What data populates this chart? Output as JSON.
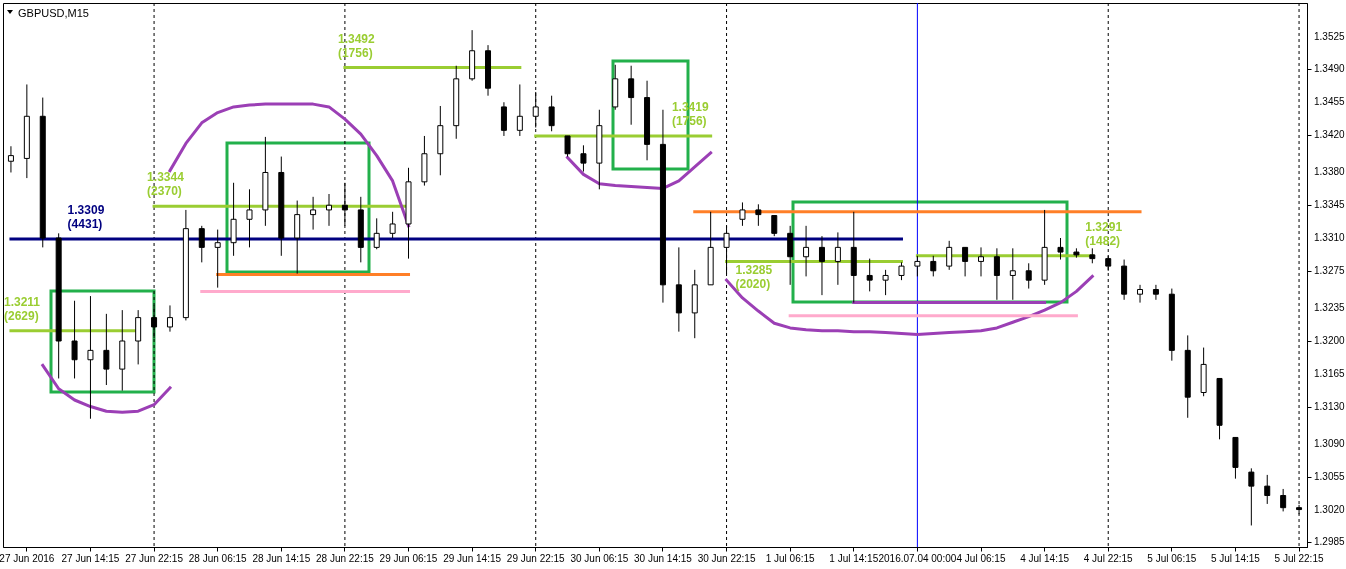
{
  "chart_data": {
    "type": "candlestick",
    "title": "GBPUSD,M15",
    "color": "#000000",
    "categories": [
      null,
      "27 Jun 2016",
      null,
      null,
      null,
      "27 Jun 14:15",
      null,
      null,
      null,
      "27 Jun 22:15",
      null,
      null,
      null,
      "28 Jun 06:15",
      null,
      null,
      null,
      "28 Jun 14:15",
      null,
      null,
      null,
      "28 Jun 22:15",
      null,
      null,
      null,
      "29 Jun 06:15",
      null,
      null,
      null,
      "29 Jun 14:15",
      null,
      null,
      null,
      "29 Jun 22:15",
      null,
      null,
      null,
      "30 Jun 06:15",
      null,
      null,
      null,
      "30 Jun 14:15",
      null,
      null,
      null,
      "30 Jun 22:15",
      null,
      null,
      null,
      "1 Jul 06:15",
      null,
      null,
      null,
      "1 Jul 14:15",
      null,
      null,
      null,
      "2016.07.04 00:00",
      null,
      null,
      null,
      "4 Jul 06:15",
      null,
      null,
      null,
      "4 Jul 14:15",
      null,
      null,
      null,
      "4 Jul 22:15",
      null,
      null,
      null,
      "5 Jul 06:15",
      null,
      null,
      null,
      "5 Jul 14:15",
      null,
      null,
      null,
      "5 Jul 22:15"
    ],
    "ohlc": [
      [
        1.3392,
        1.3408,
        1.338,
        1.3398
      ],
      [
        1.3395,
        1.3474,
        1.3374,
        1.344
      ],
      [
        1.344,
        1.346,
        1.33,
        1.331
      ],
      [
        1.331,
        1.3315,
        1.316,
        1.32
      ],
      [
        1.32,
        1.3243,
        1.316,
        1.318
      ],
      [
        1.318,
        1.3248,
        1.3117,
        1.319
      ],
      [
        1.319,
        1.3229,
        1.3153,
        1.317
      ],
      [
        1.317,
        1.3233,
        1.3147,
        1.32
      ],
      [
        1.32,
        1.3233,
        1.3175,
        1.3225
      ],
      [
        1.3225,
        1.3238,
        1.3203,
        1.3215
      ],
      [
        1.3215,
        1.3238,
        1.321,
        1.3225
      ],
      [
        1.3225,
        1.334,
        1.3222,
        1.332
      ],
      [
        1.332,
        1.3323,
        1.3284,
        1.33
      ],
      [
        1.33,
        1.3319,
        1.3257,
        1.3305
      ],
      [
        1.3305,
        1.3369,
        1.3291,
        1.333
      ],
      [
        1.333,
        1.3362,
        1.33,
        1.334
      ],
      [
        1.334,
        1.3418,
        1.3323,
        1.338
      ],
      [
        1.338,
        1.3397,
        1.3291,
        1.331
      ],
      [
        1.331,
        1.335,
        1.3272,
        1.3335
      ],
      [
        1.3335,
        1.3354,
        1.3319,
        1.334
      ],
      [
        1.334,
        1.3357,
        1.3323,
        1.3345
      ],
      [
        1.3345,
        1.3369,
        1.3323,
        1.334
      ],
      [
        1.334,
        1.3354,
        1.3284,
        1.33
      ],
      [
        1.33,
        1.3331,
        1.3298,
        1.3315
      ],
      [
        1.3315,
        1.3338,
        1.331,
        1.3325
      ],
      [
        1.3325,
        1.3385,
        1.3288,
        1.337
      ],
      [
        1.337,
        1.3419,
        1.3366,
        1.34
      ],
      [
        1.34,
        1.3451,
        1.3377,
        1.343
      ],
      [
        1.343,
        1.3494,
        1.3416,
        1.348
      ],
      [
        1.348,
        1.3532,
        1.3478,
        1.351
      ],
      [
        1.351,
        1.3516,
        1.3462,
        1.347
      ],
      [
        1.345,
        1.3455,
        1.3419,
        1.3425
      ],
      [
        1.3425,
        1.3474,
        1.3419,
        1.344
      ],
      [
        1.344,
        1.3466,
        1.3428,
        1.345
      ],
      [
        1.345,
        1.3462,
        1.3424,
        1.343
      ],
      [
        1.3419,
        1.3419,
        1.3397,
        1.34
      ],
      [
        1.34,
        1.3409,
        1.3381,
        1.339
      ],
      [
        1.339,
        1.3447,
        1.3362,
        1.343
      ],
      [
        1.345,
        1.3495,
        1.3447,
        1.348
      ],
      [
        1.348,
        1.3494,
        1.3431,
        1.346
      ],
      [
        1.346,
        1.3478,
        1.3393,
        1.341
      ],
      [
        1.341,
        1.3447,
        1.3241,
        1.326
      ],
      [
        1.326,
        1.33,
        1.321,
        1.323
      ],
      [
        1.323,
        1.3276,
        1.3203,
        1.326
      ],
      [
        1.326,
        1.3338,
        1.326,
        1.33
      ],
      [
        1.33,
        1.3323,
        1.3272,
        1.3315
      ],
      [
        1.333,
        1.3348,
        1.3323,
        1.334
      ],
      [
        1.334,
        1.3346,
        1.3323,
        1.3335
      ],
      [
        1.3334,
        1.3334,
        1.3312,
        1.3315
      ],
      [
        1.3315,
        1.3323,
        1.326,
        1.329
      ],
      [
        1.329,
        1.3323,
        1.3269,
        1.33
      ],
      [
        1.33,
        1.3312,
        1.3249,
        1.3285
      ],
      [
        1.3285,
        1.3316,
        1.326,
        1.33
      ],
      [
        1.33,
        1.3338,
        1.3241,
        1.327
      ],
      [
        1.327,
        1.3288,
        1.3253,
        1.3265
      ],
      [
        1.3265,
        1.3276,
        1.3249,
        1.327
      ],
      [
        1.327,
        1.3284,
        1.3265,
        1.328
      ],
      [
        1.328,
        1.3291,
        1.3269,
        1.3285
      ],
      [
        1.3285,
        1.3291,
        1.3269,
        1.3275
      ],
      [
        1.328,
        1.3307,
        1.3276,
        1.33
      ],
      [
        1.33,
        1.33,
        1.3269,
        1.3285
      ],
      [
        1.3285,
        1.33,
        1.3269,
        1.329
      ],
      [
        1.329,
        1.3299,
        1.3244,
        1.327
      ],
      [
        1.327,
        1.3299,
        1.3244,
        1.3275
      ],
      [
        1.3275,
        1.3283,
        1.3256,
        1.3265
      ],
      [
        1.3265,
        1.334,
        1.326,
        1.33
      ],
      [
        1.33,
        1.331,
        1.3287,
        1.3295
      ],
      [
        1.3295,
        1.3299,
        1.3289,
        1.3292
      ],
      [
        1.3292,
        1.3299,
        1.3283,
        1.3288
      ],
      [
        1.3288,
        1.3291,
        1.3275,
        1.328
      ],
      [
        1.328,
        1.3287,
        1.3244,
        1.325
      ],
      [
        1.325,
        1.326,
        1.3241,
        1.3255
      ],
      [
        1.3255,
        1.326,
        1.3244,
        1.325
      ],
      [
        1.325,
        1.3256,
        1.3179,
        1.319
      ],
      [
        1.319,
        1.3206,
        1.3118,
        1.314
      ],
      [
        1.3145,
        1.3193,
        1.3141,
        1.3175
      ],
      [
        1.316,
        1.316,
        1.3095,
        1.311
      ],
      [
        1.3097,
        1.3097,
        1.3053,
        1.3065
      ],
      [
        1.306,
        1.3064,
        1.3003,
        1.3045
      ],
      [
        1.3045,
        1.3057,
        1.3026,
        1.3035
      ],
      [
        1.3035,
        1.3042,
        1.3018,
        1.3022
      ],
      [
        1.3022,
        1.3025,
        1.3015,
        1.302
      ]
    ],
    "series": [
      {
        "name": "1.3211\n(2629)",
        "type": "line",
        "color": "#9acd32",
        "values": [
          1.3211,
          1.3211,
          1.3211,
          1.3211,
          1.3211,
          1.3211,
          1.3211,
          1.3211,
          1.3211,
          null,
          null,
          null,
          null,
          null,
          null,
          null,
          null,
          null,
          null,
          null,
          null,
          null,
          null,
          null,
          null,
          null,
          null,
          null,
          null,
          null,
          null,
          null,
          null,
          null,
          null,
          null,
          null,
          null,
          null,
          null,
          null,
          null,
          null,
          null,
          null,
          null,
          null,
          null,
          null,
          null,
          null,
          null,
          null,
          null,
          null,
          null,
          null,
          null,
          null,
          null,
          null,
          null,
          null,
          null,
          null,
          null,
          null,
          null,
          null,
          null,
          null,
          null,
          null,
          null,
          null,
          null,
          null,
          null,
          null,
          null,
          null,
          null
        ]
      },
      {
        "name": "1.3344\n(2370)",
        "type": "line",
        "color": "#9acd32",
        "values": [
          null,
          null,
          null,
          null,
          null,
          null,
          null,
          null,
          null,
          1.3344,
          1.3344,
          1.3344,
          1.3344,
          1.3344,
          1.3344,
          1.3344,
          1.3344,
          1.3344,
          1.3344,
          1.3344,
          1.3344,
          1.3344,
          1.3344,
          1.3344,
          1.3344,
          1.3344,
          null,
          null,
          null,
          null,
          null,
          null,
          null,
          null,
          null,
          null,
          null,
          null,
          null,
          null,
          null,
          null,
          null,
          null,
          null,
          null,
          null,
          null,
          null,
          null,
          null,
          null,
          null,
          null,
          null,
          null,
          null,
          null,
          null,
          null,
          null,
          null,
          null,
          null,
          null,
          null,
          null,
          null,
          null,
          null,
          null,
          null,
          null,
          null,
          null,
          null,
          null,
          null,
          null,
          null,
          null,
          null
        ]
      },
      {
        "name": "1.3492\n(1756)",
        "type": "line",
        "color": "#9acd32",
        "values": [
          null,
          null,
          null,
          null,
          null,
          null,
          null,
          null,
          null,
          null,
          null,
          null,
          null,
          null,
          null,
          null,
          null,
          null,
          null,
          null,
          null,
          1.3492,
          1.3492,
          1.3492,
          1.3492,
          1.3492,
          1.3492,
          1.3492,
          1.3492,
          1.3492,
          1.3492,
          1.3492,
          1.3492,
          null,
          null,
          null,
          null,
          null,
          null,
          null,
          null,
          null,
          null,
          null,
          null,
          null,
          null,
          null,
          null,
          null,
          null,
          null,
          null,
          null,
          null,
          null,
          null,
          null,
          null,
          null,
          null,
          null,
          null,
          null,
          null,
          null,
          null,
          null,
          null,
          null,
          null,
          null,
          null,
          null,
          null,
          null,
          null,
          null,
          null,
          null,
          null,
          null
        ]
      },
      {
        "name": "1.3419\n(1756)",
        "type": "line",
        "color": "#9acd32",
        "values": [
          null,
          null,
          null,
          null,
          null,
          null,
          null,
          null,
          null,
          null,
          null,
          null,
          null,
          null,
          null,
          null,
          null,
          null,
          null,
          null,
          null,
          null,
          null,
          null,
          null,
          null,
          null,
          null,
          null,
          null,
          null,
          null,
          null,
          1.3419,
          1.3419,
          1.3419,
          1.3419,
          1.3419,
          1.3419,
          1.3419,
          1.3419,
          1.3419,
          1.3419,
          1.3419,
          1.3419,
          null,
          null,
          null,
          null,
          null,
          null,
          null,
          null,
          null,
          null,
          null,
          null,
          null,
          null,
          null,
          null,
          null,
          null,
          null,
          null,
          null,
          null,
          null,
          null,
          null,
          null,
          null,
          null,
          null,
          null,
          null,
          null,
          null,
          null,
          null,
          null,
          null
        ]
      },
      {
        "name": "1.3285\n(2020)",
        "type": "line",
        "color": "#9acd32",
        "values": [
          null,
          null,
          null,
          null,
          null,
          null,
          null,
          null,
          null,
          null,
          null,
          null,
          null,
          null,
          null,
          null,
          null,
          null,
          null,
          null,
          null,
          null,
          null,
          null,
          null,
          null,
          null,
          null,
          null,
          null,
          null,
          null,
          null,
          null,
          null,
          null,
          null,
          null,
          null,
          null,
          null,
          null,
          null,
          null,
          null,
          1.3285,
          1.3285,
          1.3285,
          1.3285,
          1.3285,
          1.3285,
          1.3285,
          1.3285,
          1.3285,
          1.3285,
          1.3285,
          1.3285,
          null,
          null,
          null,
          null,
          null,
          null,
          null,
          null,
          null,
          null,
          null,
          null,
          null,
          null,
          null,
          null,
          null,
          null,
          null,
          null,
          null,
          null,
          null,
          null,
          null
        ]
      },
      {
        "name": "1.3291\n(1482)",
        "type": "line",
        "color": "#9acd32",
        "values": [
          null,
          null,
          null,
          null,
          null,
          null,
          null,
          null,
          null,
          null,
          null,
          null,
          null,
          null,
          null,
          null,
          null,
          null,
          null,
          null,
          null,
          null,
          null,
          null,
          null,
          null,
          null,
          null,
          null,
          null,
          null,
          null,
          null,
          null,
          null,
          null,
          null,
          null,
          null,
          null,
          null,
          null,
          null,
          null,
          null,
          null,
          null,
          null,
          null,
          null,
          null,
          null,
          null,
          null,
          null,
          null,
          null,
          1.3291,
          1.3291,
          1.3291,
          1.3291,
          1.3291,
          1.3291,
          1.3291,
          1.3291,
          1.3291,
          1.3291,
          1.3291,
          1.3291,
          null,
          null,
          null,
          null,
          null,
          null,
          null,
          null,
          null,
          null,
          null,
          null,
          null
        ]
      },
      {
        "name": "1.3309\n(4431)",
        "type": "line",
        "color": "#000080",
        "values": [
          1.3309,
          1.3309,
          1.3309,
          1.3309,
          1.3309,
          1.3309,
          1.3309,
          1.3309,
          1.3309,
          1.3309,
          1.3309,
          1.3309,
          1.3309,
          1.3309,
          1.3309,
          1.3309,
          1.3309,
          1.3309,
          1.3309,
          1.3309,
          1.3309,
          1.3309,
          1.3309,
          1.3309,
          1.3309,
          1.3309,
          1.3309,
          1.3309,
          1.3309,
          1.3309,
          1.3309,
          1.3309,
          1.3309,
          1.3309,
          1.3309,
          1.3309,
          1.3309,
          1.3309,
          1.3309,
          1.3309,
          1.3309,
          1.3309,
          1.3309,
          1.3309,
          1.3309,
          1.3309,
          1.3309,
          1.3309,
          1.3309,
          1.3309,
          1.3309,
          1.3309,
          1.3309,
          1.3309,
          1.3309,
          1.3309,
          1.3309,
          null,
          null,
          null,
          null,
          null,
          null,
          null,
          null,
          null,
          null,
          null,
          null,
          null,
          null,
          null,
          null,
          null,
          null,
          null,
          null,
          null,
          null,
          null,
          null,
          null
        ]
      },
      {
        "type": "line",
        "color": "#ff7f27",
        "values": [
          null,
          null,
          null,
          null,
          null,
          null,
          null,
          null,
          null,
          null,
          null,
          null,
          null,
          1.3271,
          1.3271,
          1.3271,
          1.3271,
          1.3271,
          1.3271,
          1.3271,
          1.3271,
          1.3271,
          1.3271,
          1.3271,
          1.3271,
          1.3271,
          null,
          null,
          null,
          null,
          null,
          null,
          null,
          null,
          null,
          null,
          null,
          null,
          null,
          null,
          null,
          null,
          null,
          null,
          null,
          null,
          null,
          null,
          null,
          null,
          null,
          null,
          null,
          null,
          null,
          null,
          null,
          null,
          null,
          null,
          null,
          null,
          null,
          null,
          null,
          null,
          null,
          null,
          null,
          null,
          null,
          null,
          null,
          null,
          null,
          null,
          null,
          null,
          null,
          null,
          null,
          null
        ]
      },
      {
        "type": "line",
        "color": "#ff7f27",
        "values": [
          null,
          null,
          null,
          null,
          null,
          null,
          null,
          null,
          null,
          null,
          null,
          null,
          null,
          null,
          null,
          null,
          null,
          null,
          null,
          null,
          null,
          null,
          null,
          null,
          null,
          null,
          null,
          null,
          null,
          null,
          null,
          null,
          null,
          null,
          null,
          null,
          null,
          null,
          null,
          null,
          null,
          null,
          null,
          1.3338,
          1.3338,
          1.3338,
          1.3338,
          1.3338,
          1.3338,
          1.3338,
          1.3338,
          1.3338,
          1.3338,
          1.3338,
          1.3338,
          1.3338,
          1.3338,
          1.3338,
          1.3338,
          1.3338,
          1.3338,
          1.3338,
          1.3338,
          1.3338,
          1.3338,
          1.3338,
          1.3338,
          1.3338,
          1.3338,
          1.3338,
          1.3338,
          1.3338,
          null,
          null,
          null,
          null,
          null,
          null,
          null,
          null,
          null,
          null
        ]
      },
      {
        "type": "line",
        "color": "#9b3fb5",
        "values": [
          null,
          null,
          null,
          null,
          null,
          null,
          null,
          null,
          null,
          null,
          null,
          null,
          null,
          null,
          null,
          null,
          null,
          null,
          null,
          null,
          null,
          null,
          null,
          null,
          null,
          null,
          null,
          null,
          null,
          null,
          null,
          null,
          null,
          null,
          null,
          null,
          null,
          null,
          null,
          null,
          null,
          null,
          null,
          null,
          null,
          null,
          null,
          null,
          null,
          null,
          null,
          null,
          null,
          1.3241,
          1.3241,
          1.3241,
          1.3241,
          1.3241,
          1.3241,
          1.3241,
          1.3241,
          1.3241,
          1.3241,
          1.3241,
          1.3241,
          1.3241,
          null,
          null,
          null,
          null,
          null,
          null,
          null,
          null,
          null,
          null,
          null,
          null,
          null,
          null,
          null,
          null
        ]
      },
      {
        "type": "line",
        "color": "#9b3fb5",
        "values": [
          null,
          null,
          1.3174,
          1.3149,
          1.3137,
          1.313,
          1.3125,
          1.3124,
          1.3125,
          1.3132,
          1.315,
          null,
          null,
          null,
          null,
          null,
          null,
          null,
          null,
          null,
          null,
          null,
          null,
          null,
          null,
          null,
          null,
          null,
          null,
          null,
          null,
          null,
          null,
          null,
          null,
          null,
          null,
          null,
          null,
          null,
          null,
          null,
          null,
          null,
          null,
          null,
          null,
          null,
          null,
          null,
          null,
          null,
          null,
          null,
          null,
          null,
          null,
          null,
          null,
          null,
          null,
          null,
          null,
          null,
          null,
          null,
          null,
          null,
          null,
          null,
          null,
          null,
          null,
          null,
          null,
          null,
          null,
          null,
          null,
          null,
          null,
          null
        ]
      },
      {
        "type": "line",
        "color": "#9b3fb5",
        "values": [
          null,
          null,
          null,
          null,
          null,
          null,
          null,
          null,
          null,
          null,
          1.3382,
          1.3411,
          1.3433,
          1.3444,
          1.345,
          1.3452,
          1.3453,
          1.3453,
          1.3453,
          1.3453,
          1.345,
          1.3437,
          1.3421,
          1.3398,
          1.3371,
          1.3323,
          null,
          null,
          null,
          null,
          null,
          null,
          null,
          null,
          null,
          null,
          null,
          null,
          null,
          null,
          null,
          null,
          null,
          null,
          null,
          null,
          null,
          null,
          null,
          null,
          null,
          null,
          null,
          null,
          null,
          null,
          null,
          null,
          null,
          null,
          null,
          null,
          null,
          null,
          null,
          null,
          null,
          null,
          null,
          null,
          null,
          null,
          null,
          null,
          null,
          null,
          null,
          null,
          null,
          null,
          null,
          null
        ]
      },
      {
        "type": "line",
        "color": "#9b3fb5",
        "values": [
          null,
          null,
          null,
          null,
          null,
          null,
          null,
          null,
          null,
          null,
          null,
          null,
          null,
          null,
          null,
          null,
          null,
          null,
          null,
          null,
          null,
          null,
          null,
          null,
          null,
          null,
          null,
          null,
          null,
          null,
          null,
          null,
          null,
          null,
          null,
          1.3396,
          1.3378,
          1.3368,
          1.3366,
          1.3365,
          1.3364,
          1.3363,
          1.3371,
          1.3386,
          1.3401,
          null,
          null,
          null,
          null,
          null,
          null,
          null,
          null,
          null,
          null,
          null,
          null,
          null,
          null,
          null,
          null,
          null,
          null,
          null,
          null,
          null,
          null,
          null,
          null,
          null,
          null,
          null,
          null,
          null,
          null,
          null,
          null,
          null,
          null,
          null,
          null,
          null
        ]
      },
      {
        "type": "line",
        "color": "#9b3fb5",
        "values": [
          null,
          null,
          null,
          null,
          null,
          null,
          null,
          null,
          null,
          null,
          null,
          null,
          null,
          null,
          null,
          null,
          null,
          null,
          null,
          null,
          null,
          null,
          null,
          null,
          null,
          null,
          null,
          null,
          null,
          null,
          null,
          null,
          null,
          null,
          null,
          null,
          null,
          null,
          null,
          null,
          null,
          null,
          null,
          null,
          null,
          1.3265,
          1.3246,
          1.3232,
          1.3219,
          1.3214,
          1.3212,
          1.3211,
          1.3211,
          1.321,
          1.321,
          1.3209,
          1.3208,
          1.3207,
          1.3208,
          1.3209,
          1.321,
          1.3211,
          1.3214,
          1.322,
          1.3226,
          1.3233,
          1.3241,
          1.3253,
          1.3269,
          null,
          null,
          null,
          null,
          null,
          null,
          null,
          null,
          null,
          null,
          null,
          null,
          null
        ]
      },
      {
        "type": "line",
        "color": "#ffaacc",
        "values": [
          null,
          null,
          null,
          null,
          null,
          null,
          null,
          null,
          null,
          null,
          null,
          null,
          1.3253,
          1.3253,
          1.3253,
          1.3253,
          1.3253,
          1.3253,
          1.3253,
          1.3253,
          1.3253,
          1.3253,
          1.3253,
          1.3253,
          1.3253,
          1.3253,
          null,
          null,
          null,
          null,
          null,
          null,
          null,
          null,
          null,
          null,
          null,
          null,
          null,
          null,
          null,
          null,
          null,
          null,
          null,
          null,
          null,
          null,
          null,
          null,
          null,
          null,
          null,
          null,
          null,
          null,
          null,
          null,
          null,
          null,
          null,
          null,
          null,
          null,
          null,
          null,
          null,
          null,
          null,
          null,
          null,
          null,
          null,
          null,
          null,
          null,
          null,
          null,
          null,
          null,
          null,
          null
        ]
      },
      {
        "type": "line",
        "color": "#ffaacc",
        "values": [
          null,
          null,
          null,
          null,
          null,
          null,
          null,
          null,
          null,
          null,
          null,
          null,
          null,
          null,
          null,
          null,
          null,
          null,
          null,
          null,
          null,
          null,
          null,
          null,
          null,
          null,
          null,
          null,
          null,
          null,
          null,
          null,
          null,
          null,
          null,
          null,
          null,
          null,
          null,
          null,
          null,
          null,
          null,
          null,
          null,
          null,
          null,
          null,
          null,
          1.3227,
          1.3227,
          1.3227,
          1.3227,
          1.3227,
          1.3227,
          1.3227,
          1.3227,
          1.3227,
          1.3227,
          1.3227,
          1.3227,
          1.3227,
          1.3227,
          1.3227,
          1.3227,
          1.3227,
          1.3227,
          1.3227,
          null,
          null,
          null,
          null,
          null,
          null,
          null,
          null,
          null,
          null,
          null,
          null,
          null,
          null
        ]
      }
    ],
    "ylim": [
      1.298,
      1.3561
    ],
    "yticks": [
      1.3525,
      {
        "value": 1.349,
        "label": "1.3490"
      },
      1.3455,
      {
        "value": 1.342,
        "label": "1.3420"
      },
      {
        "value": 1.338,
        "label": "1.3380"
      },
      1.3345,
      {
        "value": 1.331,
        "label": "1.3310"
      },
      1.3275,
      1.3235,
      {
        "value": 1.32,
        "label": "1.3200"
      },
      1.3165,
      {
        "value": 1.313,
        "label": "1.3130"
      },
      {
        "value": 1.309,
        "label": "1.3090"
      },
      1.3055,
      {
        "value": 1.302,
        "label": "1.3020"
      },
      1.2985
    ],
    "ref_lines": [
      {
        "axis": "x",
        "value": "27 Jun 22:15",
        "color": "#000000",
        "line_style": "dashed"
      },
      {
        "axis": "x",
        "value": "28 Jun 22:15",
        "color": "#000000",
        "line_style": "dashed"
      },
      {
        "axis": "x",
        "value": "29 Jun 22:15",
        "color": "#000000",
        "line_style": "dashed"
      },
      {
        "axis": "x",
        "value": "30 Jun 22:15",
        "color": "#000000",
        "line_style": "dashed"
      },
      {
        "axis": "x",
        "value": "4 Jul 22:15",
        "color": "#000000",
        "line_style": "dashed"
      },
      {
        "axis": "x",
        "value": "5 Jul 22:15",
        "color": "#000000",
        "line_style": "dashed"
      },
      {
        "axis": "x",
        "value": "2016.07.04 00:00",
        "color": "#0000ff",
        "line_style": "solid"
      }
    ]
  }
}
